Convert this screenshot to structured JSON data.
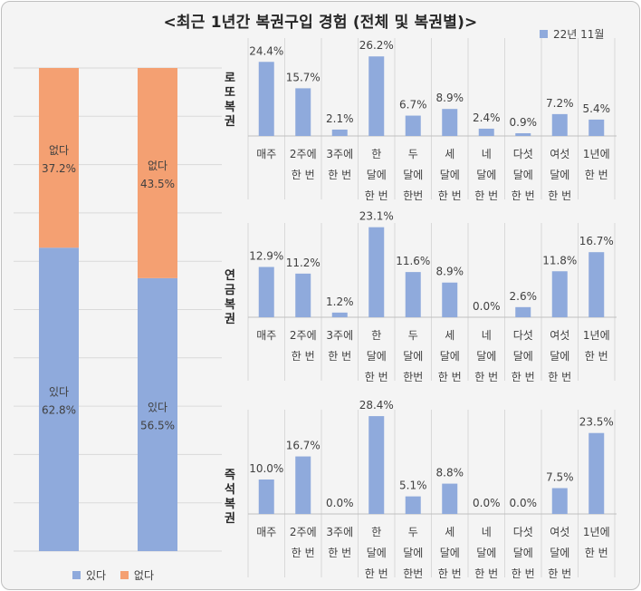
{
  "title": "<최근 1년간 복권구입 경험 (전체 및 복권별)>",
  "colors": {
    "blue": "#8faadc",
    "orange": "#f4a072",
    "grid": "#d9d9d9",
    "text": "#404040",
    "frame": "#f4f4f4"
  },
  "chart_data": [
    {
      "type": "bar",
      "stacked": true,
      "title": "",
      "categories": [
        "",
        ""
      ],
      "series": [
        {
          "name": "있다",
          "values": [
            62.8,
            56.5
          ],
          "labels": [
            "있다\n62.8%",
            "있다\n56.5%"
          ]
        },
        {
          "name": "없다",
          "values": [
            37.2,
            43.5
          ],
          "labels": [
            "없다\n37.2%",
            "없다\n43.5%"
          ]
        }
      ],
      "ylim": [
        0,
        100
      ],
      "grid": true,
      "legend": [
        "있다",
        "없다"
      ],
      "legend_position": "bottom"
    },
    {
      "type": "bar",
      "title": "로또복권",
      "categories": [
        "매주",
        "2주에\n한 번",
        "3주에\n한 번",
        "한\n달에\n한 번",
        "두\n달에\n한번",
        "세\n달에\n한 번",
        "네\n달에\n한 번",
        "다섯\n달에\n한 번",
        "여섯\n달에\n한 번",
        "1년에\n한 번"
      ],
      "values": [
        24.4,
        15.7,
        2.1,
        26.2,
        6.7,
        8.9,
        2.4,
        0.9,
        7.2,
        5.4
      ],
      "value_labels": [
        "24.4%",
        "15.7%",
        "2.1%",
        "26.2%",
        "6.7%",
        "8.9%",
        "2.4%",
        "0.9%",
        "7.2%",
        "5.4%"
      ],
      "legend": "22년 11월",
      "legend_position": "top-right"
    },
    {
      "type": "bar",
      "title": "연금복권",
      "categories": [
        "매주",
        "2주에\n한 번",
        "3주에\n한 번",
        "한\n달에\n한 번",
        "두\n달에\n한번",
        "세\n달에\n한 번",
        "네\n달에\n한 번",
        "다섯\n달에\n한 번",
        "여섯\n달에\n한 번",
        "1년에\n한 번"
      ],
      "values": [
        12.9,
        11.2,
        1.2,
        23.1,
        11.6,
        8.9,
        0.0,
        2.6,
        11.8,
        16.7
      ],
      "value_labels": [
        "12.9%",
        "11.2%",
        "1.2%",
        "23.1%",
        "11.6%",
        "8.9%",
        "0.0%",
        "2.6%",
        "11.8%",
        "16.7%"
      ]
    },
    {
      "type": "bar",
      "title": "즉석복권",
      "categories": [
        "매주",
        "2주에\n한 번",
        "3주에\n한 번",
        "한\n달에\n한 번",
        "두\n달에\n한번",
        "세\n달에\n한 번",
        "네\n달에\n한 번",
        "다섯\n달에\n한 번",
        "여섯\n달에\n한 번",
        "1년에\n한 번"
      ],
      "values": [
        10.0,
        16.7,
        0.0,
        28.4,
        5.1,
        8.8,
        0.0,
        0.0,
        7.5,
        23.5
      ],
      "value_labels": [
        "10.0%",
        "16.7%",
        "0.0%",
        "28.4%",
        "5.1%",
        "8.8%",
        "0.0%",
        "0.0%",
        "7.5%",
        "23.5%"
      ]
    }
  ]
}
